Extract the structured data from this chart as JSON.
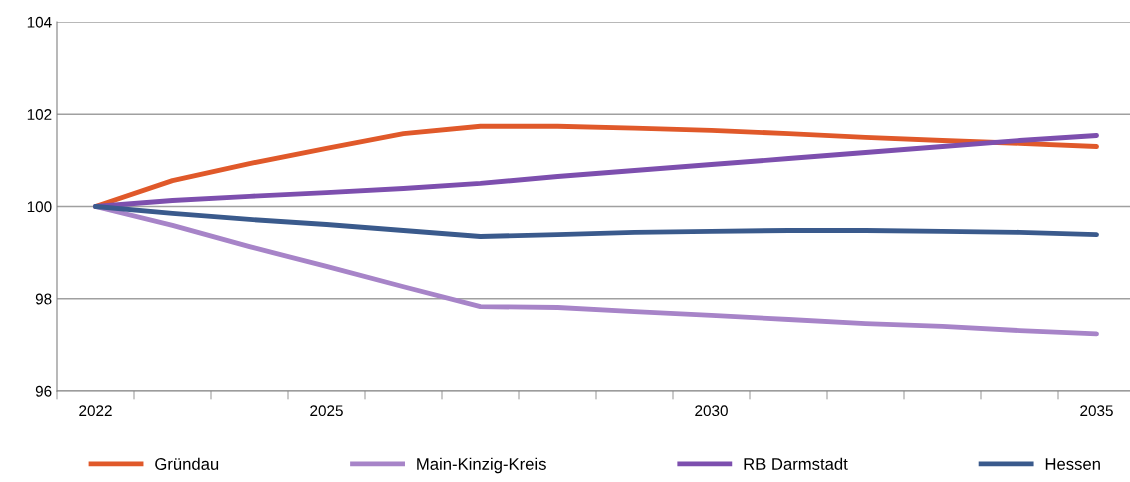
{
  "chart_data": {
    "type": "line",
    "categories": [
      "2022",
      null,
      null,
      "2025",
      null,
      null,
      null,
      null,
      "2030",
      null,
      null,
      null,
      null,
      "2035"
    ],
    "series": [
      {
        "name": "Gründau",
        "color": "#e0592a",
        "values": [
          100,
          100.56,
          100.93,
          101.26,
          101.58,
          101.74,
          101.74,
          101.7,
          101.65,
          101.58,
          101.5,
          101.43,
          101.37,
          101.3
        ]
      },
      {
        "name": "Main-Kinzig-Kreis",
        "color": "#a784c8",
        "values": [
          100,
          99.59,
          99.13,
          98.7,
          98.26,
          97.83,
          97.81,
          97.72,
          97.64,
          97.55,
          97.46,
          97.4,
          97.31,
          97.24
        ]
      },
      {
        "name": "RB Darmstadt",
        "color": "#7d4fae",
        "values": [
          100,
          100.13,
          100.22,
          100.3,
          100.39,
          100.5,
          100.65,
          100.78,
          100.91,
          101.04,
          101.17,
          101.3,
          101.43,
          101.54
        ]
      },
      {
        "name": "Hessen",
        "color": "#3a5a8c",
        "values": [
          100,
          99.85,
          99.72,
          99.61,
          99.48,
          99.35,
          99.39,
          99.44,
          99.46,
          99.48,
          99.48,
          99.46,
          99.44,
          99.39
        ]
      }
    ],
    "ylim": [
      96,
      104
    ],
    "yticks": [
      96,
      98,
      100,
      102,
      104
    ],
    "grid": "y",
    "legend": "bottom",
    "marker": "none",
    "line_style": "solid"
  }
}
